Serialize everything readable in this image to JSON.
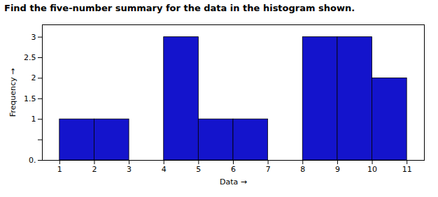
{
  "chart_data": {
    "type": "histogram",
    "title": "Find the five-number summary for the data in the histogram shown.",
    "x_label": "Data",
    "y_label": "Frequency",
    "bins": [
      1,
      2,
      3,
      4,
      5,
      6,
      7,
      8,
      9,
      10,
      11
    ],
    "values": [
      1,
      1,
      0,
      3,
      1,
      1,
      0,
      3,
      3,
      2
    ],
    "color": "#1414CC",
    "xlim": [
      0.5,
      11.5
    ],
    "ylim": [
      0,
      3.3
    ],
    "xticks": [
      1,
      2,
      3,
      4,
      5,
      6,
      7,
      8,
      9,
      10,
      11
    ],
    "yticks": [
      {
        "value": 0,
        "label": "0."
      },
      {
        "value": 0.5,
        "label": null
      },
      1,
      1.5,
      2,
      2.5,
      3
    ],
    "grid": false
  }
}
